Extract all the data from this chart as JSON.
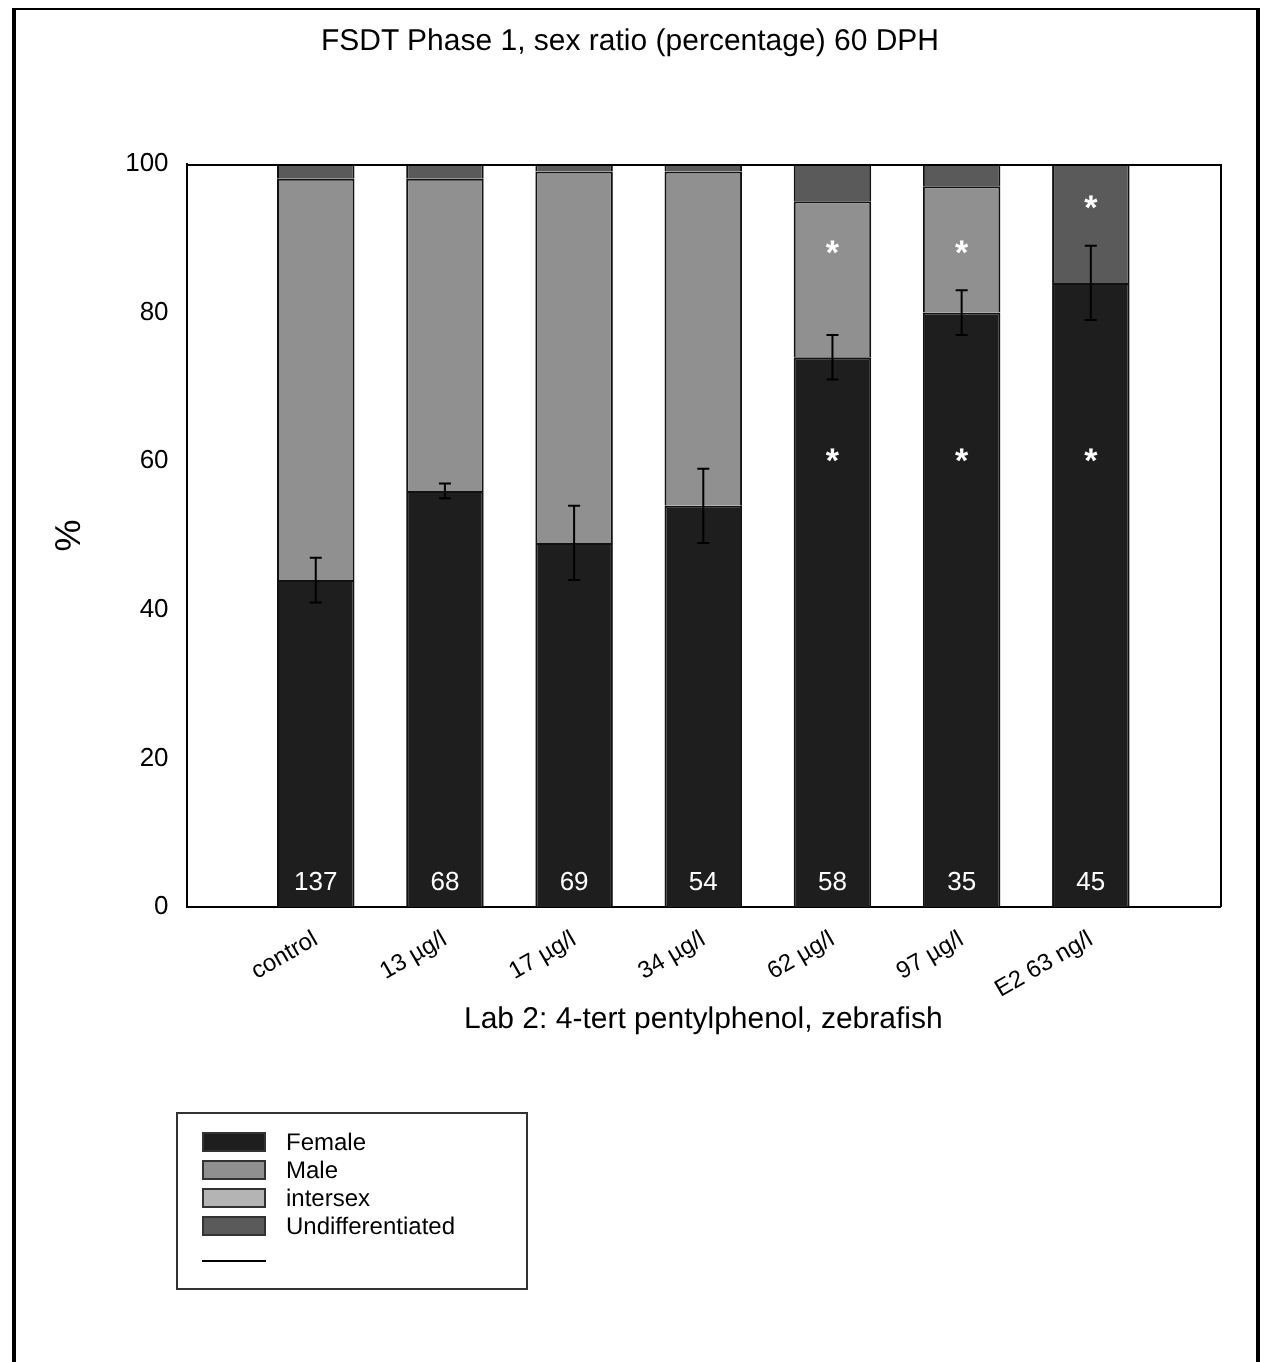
{
  "chart_data": {
    "type": "bar",
    "title": "FSDT Phase 1, sex ratio (percentage) 60 DPH",
    "xlabel": "Lab 2: 4-tert pentylphenol, zebrafish",
    "ylabel": "%",
    "categories": [
      "control",
      "13 µg/l",
      "17 µg/l",
      "34 µg/l",
      "62 µg/l",
      "97 µg/l",
      "E2 63 ng/l"
    ],
    "stacked": true,
    "ylim": [
      0,
      100
    ],
    "yticks": [
      0,
      20,
      40,
      60,
      80,
      100
    ],
    "legend": "bottom left",
    "series": [
      {
        "name": "Female",
        "color": "#1e1e1e",
        "values": [
          44,
          56,
          49,
          54,
          74,
          80,
          84
        ],
        "errors": [
          3,
          1,
          5,
          5,
          3,
          3,
          5
        ]
      },
      {
        "name": "Male",
        "color": "#909090",
        "values": [
          54,
          42,
          50,
          45,
          21,
          17,
          0
        ]
      },
      {
        "name": "intersex",
        "color": "#b4b4b4",
        "values": [
          0,
          0,
          0,
          0,
          0,
          0,
          0
        ]
      },
      {
        "name": "Undifferentiated",
        "color": "#5a5a5a",
        "values": [
          2,
          2,
          1,
          1,
          5,
          3,
          16
        ]
      }
    ],
    "annotations": [
      {
        "text": "137",
        "x": "control",
        "y": 2
      },
      {
        "text": "68",
        "x": "13 µg/l",
        "y": 2
      },
      {
        "text": "69",
        "x": "17 µg/l",
        "y": 2
      },
      {
        "text": "54",
        "x": "34 µg/l",
        "y": 2
      },
      {
        "text": "58",
        "x": "62 µg/l",
        "y": 2
      },
      {
        "text": "35",
        "x": "97 µg/l",
        "y": 2
      },
      {
        "text": "45",
        "x": "E2 63 ng/l",
        "y": 2
      },
      {
        "text": "*",
        "x": "62 µg/l",
        "y": 60
      },
      {
        "text": "*",
        "x": "97 µg/l",
        "y": 60
      },
      {
        "text": "*",
        "x": "E2 63 ng/l",
        "y": 60
      },
      {
        "text": "*",
        "x": "62 µg/l",
        "y": 88
      },
      {
        "text": "*",
        "x": "97 µg/l",
        "y": 88
      },
      {
        "text": "*",
        "x": "E2 63 ng/l",
        "y": 94
      }
    ]
  }
}
